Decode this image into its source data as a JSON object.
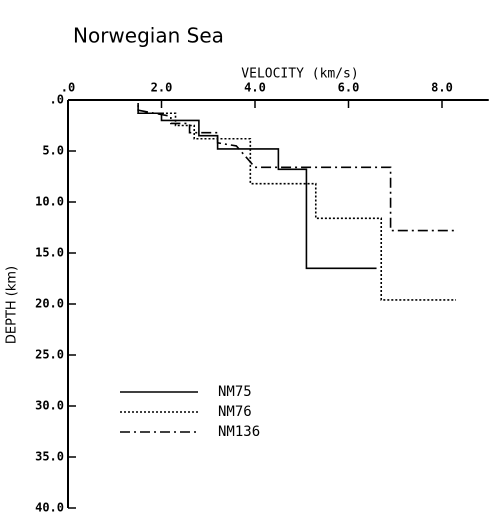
{
  "chart_data": {
    "type": "line",
    "title": "Norwegian Sea",
    "x_label": "VELOCITY (km/s)",
    "y_label": "DEPTH (km)",
    "xlim": [
      0,
      9.0
    ],
    "ylim": [
      0,
      40
    ],
    "y_inverted": true,
    "x_axis_position": "top",
    "xticks": [
      {
        "value": 0,
        "label": ".0"
      },
      {
        "value": 2,
        "label": "2.0"
      },
      {
        "value": 4,
        "label": "4.0"
      },
      {
        "value": 6,
        "label": "6.0"
      },
      {
        "value": 8,
        "label": "8.0"
      }
    ],
    "yticks": [
      {
        "value": 0,
        "label": ".0"
      },
      {
        "value": 5,
        "label": "5.0"
      },
      {
        "value": 10,
        "label": "10.0"
      },
      {
        "value": 15,
        "label": "15.0"
      },
      {
        "value": 20,
        "label": "20.0"
      },
      {
        "value": 25,
        "label": "25.0"
      },
      {
        "value": 30,
        "label": "30.0"
      },
      {
        "value": 35,
        "label": "35.0"
      },
      {
        "value": 40,
        "label": "40.0"
      }
    ],
    "legend": "bottom-left",
    "series": [
      {
        "name": "NM75",
        "color": "#000000",
        "dash": "solid",
        "x": [
          1.5,
          1.5,
          2.0,
          2.0,
          2.8,
          2.8,
          3.2,
          3.2,
          4.5,
          4.5,
          5.1,
          5.1,
          6.6
        ],
        "values": [
          0.3,
          1.3,
          1.3,
          2.0,
          2.0,
          3.5,
          3.5,
          4.8,
          4.8,
          6.8,
          6.8,
          16.5,
          16.5
        ]
      },
      {
        "name": "NM76",
        "color": "#000000",
        "dash": "dot",
        "x": [
          1.5,
          1.5,
          2.3,
          2.3,
          2.7,
          2.7,
          3.9,
          3.9,
          5.3,
          5.3,
          6.7,
          6.7,
          8.3
        ],
        "values": [
          0.5,
          1.3,
          1.3,
          2.5,
          2.5,
          3.8,
          3.8,
          8.2,
          8.2,
          11.6,
          11.6,
          19.6,
          19.6
        ]
      },
      {
        "name": "NM136",
        "color": "#000000",
        "dash": "dashdot",
        "x": [
          1.5,
          2.2,
          2.2,
          2.6,
          2.6,
          3.2,
          3.2,
          3.6,
          4.0,
          6.9,
          6.9,
          8.3
        ],
        "values": [
          1.0,
          1.6,
          2.3,
          2.3,
          3.2,
          3.2,
          4.2,
          4.5,
          6.6,
          6.6,
          12.8,
          12.8
        ]
      }
    ]
  }
}
